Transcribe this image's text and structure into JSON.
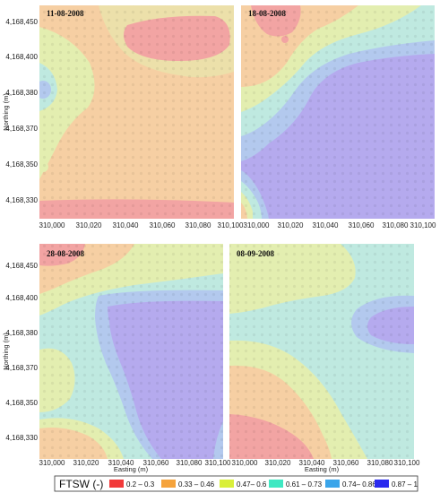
{
  "panels": [
    {
      "date": "11-08-2008"
    },
    {
      "date": "18-08-2008"
    },
    {
      "date": "28-08-2008"
    },
    {
      "date": "08-09-2008"
    }
  ],
  "axes": {
    "y_label": "Northing (m)",
    "x_label": "Easting (m)",
    "y_ticks": [
      "4,168,450",
      "4,168,400",
      "4,168,380",
      "4,168,370",
      "4,168,350",
      "4,168,330"
    ],
    "x_ticks_top_left": [
      "310,000",
      "310,020",
      "310,040",
      "310,060",
      "310,080",
      "310,100"
    ],
    "x_ticks_top_right": [
      "310,000",
      "310,020",
      "310,040",
      "310,060",
      "310,080",
      "310,100"
    ],
    "x_ticks_bottom_left": [
      "310,000",
      "310,020",
      "310,040",
      "310,060",
      "310,080",
      "310,100"
    ],
    "x_ticks_bottom_right": [
      "310,000",
      "310,020",
      "310,040",
      "310,060",
      "310,080",
      "310,100"
    ]
  },
  "legend": {
    "title": "FTSW (-)",
    "items": [
      {
        "label": "0.2 – 0.3",
        "color": "#f23a3a"
      },
      {
        "label": "0.33 – 0.46",
        "color": "#f5a33c"
      },
      {
        "label": "0.47– 0.6",
        "color": "#d9ef3a"
      },
      {
        "label": "0.61 – 0.73",
        "color": "#3fe8c2"
      },
      {
        "label": "0.74– 0.86",
        "color": "#3aa5ea"
      },
      {
        "label": "0.87 – 1",
        "color": "#2a2aee"
      }
    ]
  },
  "map_colors": {
    "red": "#f2a4a3",
    "orange": "#f6cfa3",
    "yellow": "#e3eeb0",
    "teal": "#bfe9e0",
    "blue": "#b3c9ee",
    "purple": "#b5aaee"
  }
}
